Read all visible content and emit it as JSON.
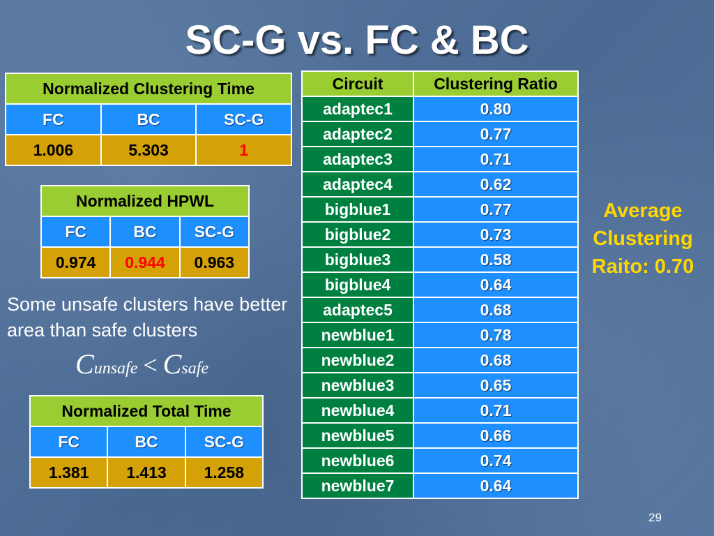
{
  "title": "SC-G vs. FC & BC",
  "clustering_time": {
    "header": "Normalized Clustering Time",
    "cols": [
      "FC",
      "BC",
      "SC-G"
    ],
    "values": [
      "1.006",
      "5.303",
      "1"
    ]
  },
  "hpwl": {
    "header": "Normalized HPWL",
    "cols": [
      "FC",
      "BC",
      "SC-G"
    ],
    "values": [
      "0.974",
      "0.944",
      "0.963"
    ]
  },
  "total_time": {
    "header": "Normalized Total Time",
    "cols": [
      "FC",
      "BC",
      "SC-G"
    ],
    "values": [
      "1.381",
      "1.413",
      "1.258"
    ]
  },
  "note": "Some unsafe clusters have better area than safe clusters",
  "formula": {
    "c": "C",
    "unsafe": "unsafe",
    "lt": "<",
    "safe": "safe"
  },
  "ratio_table": {
    "headers": [
      "Circuit",
      "Clustering Ratio"
    ],
    "rows": [
      [
        "adaptec1",
        "0.80"
      ],
      [
        "adaptec2",
        "0.77"
      ],
      [
        "adaptec3",
        "0.71"
      ],
      [
        "adaptec4",
        "0.62"
      ],
      [
        "bigblue1",
        "0.77"
      ],
      [
        "bigblue2",
        "0.73"
      ],
      [
        "bigblue3",
        "0.58"
      ],
      [
        "bigblue4",
        "0.64"
      ],
      [
        "adaptec5",
        "0.68"
      ],
      [
        "newblue1",
        "0.78"
      ],
      [
        "newblue2",
        "0.68"
      ],
      [
        "newblue3",
        "0.65"
      ],
      [
        "newblue4",
        "0.71"
      ],
      [
        "newblue5",
        "0.66"
      ],
      [
        "newblue6",
        "0.74"
      ],
      [
        "newblue7",
        "0.64"
      ]
    ]
  },
  "average": "Average Clustering Raito: 0.70",
  "page_number": "29",
  "colors": {
    "header_green": "#9acd32",
    "cell_blue": "#1e8fff",
    "cell_dark_green": "#008040",
    "value_gold": "#d4a106",
    "highlight_red": "#ff0000",
    "accent_yellow": "#ffd700"
  }
}
